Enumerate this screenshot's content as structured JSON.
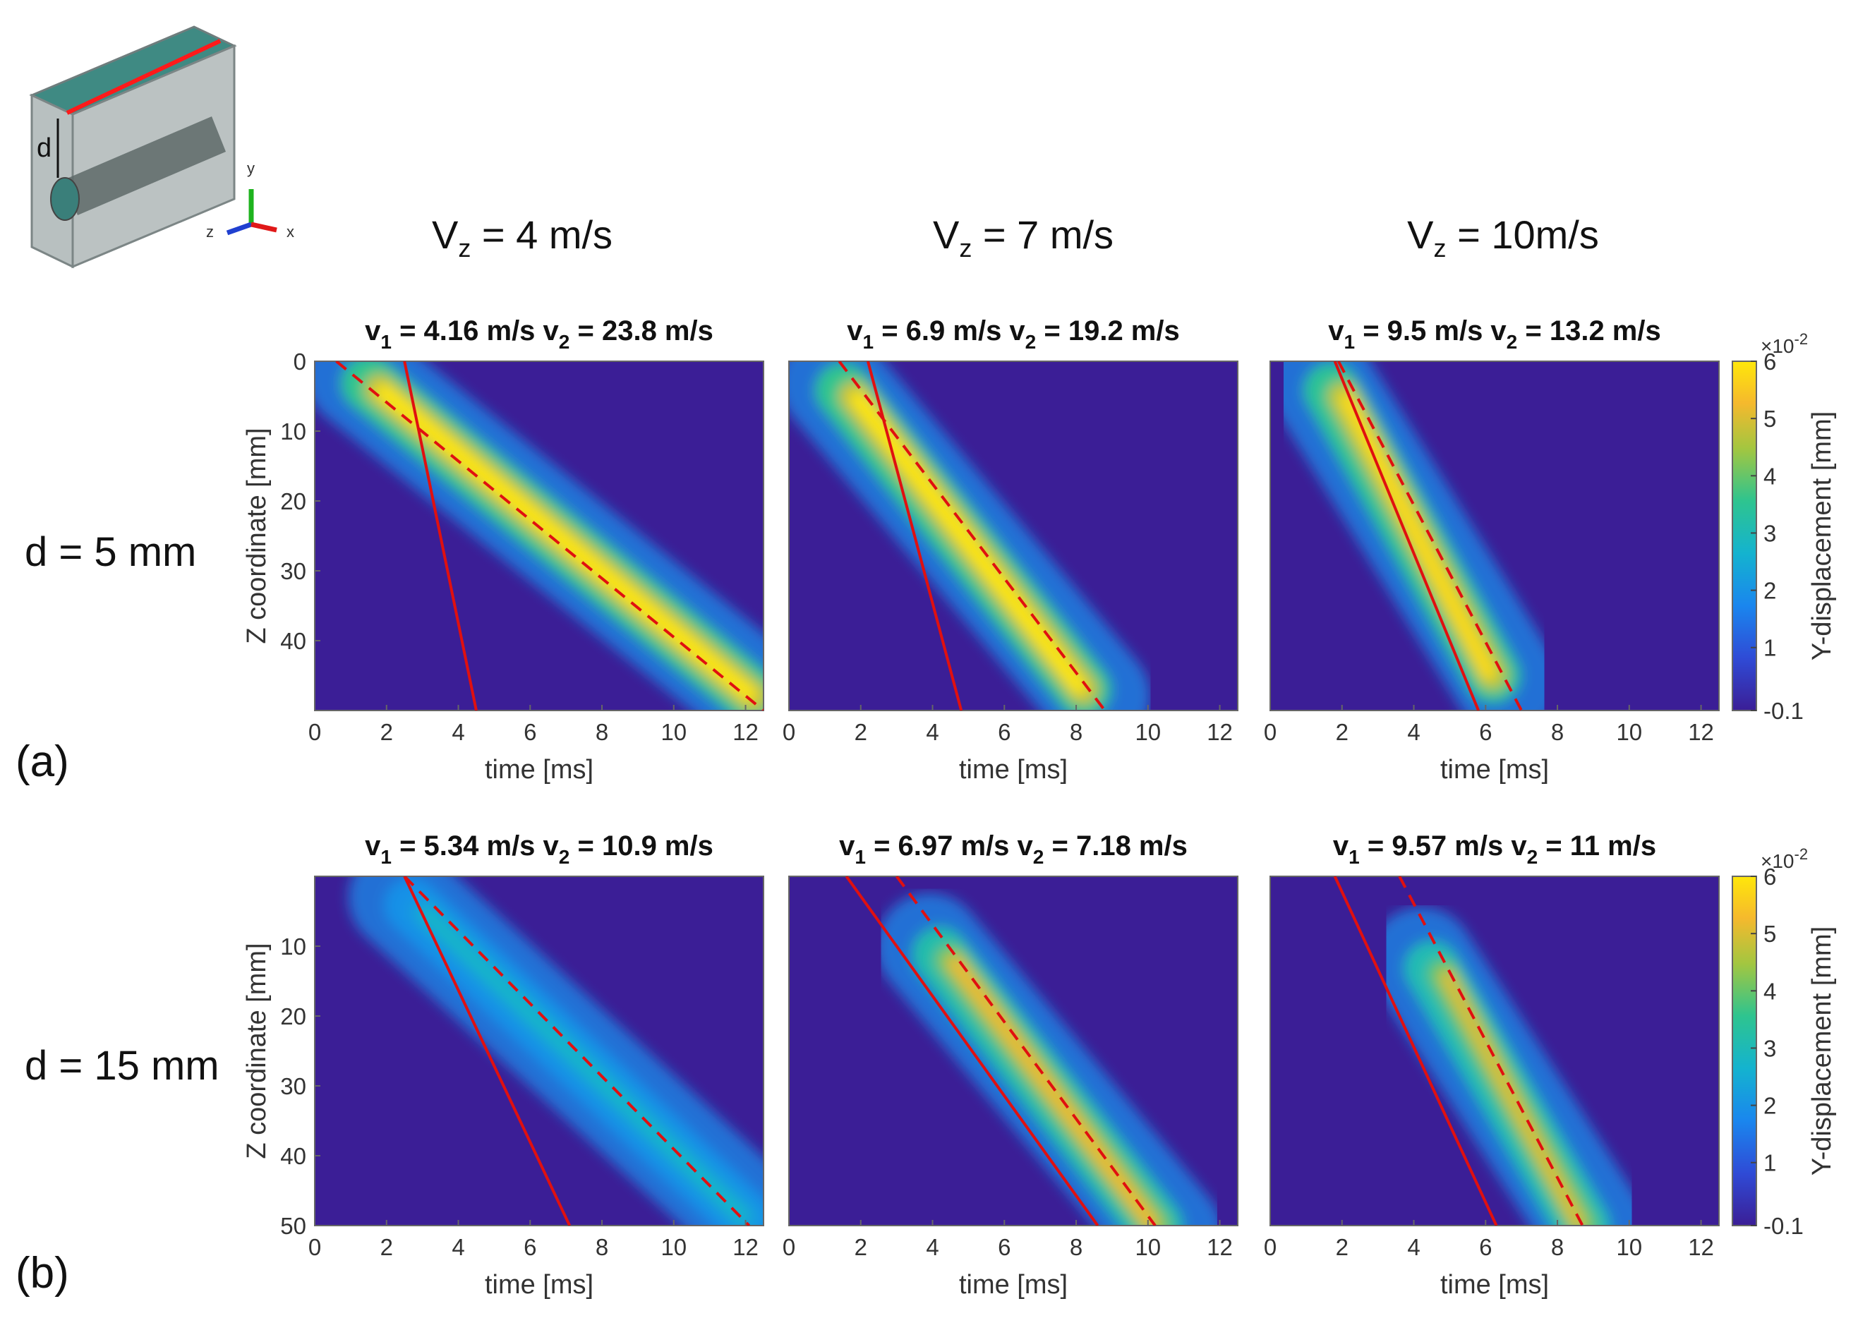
{
  "colors": {
    "background": "#3b1e96",
    "ridge_peak": "#ffe70a",
    "fit_line": "#e01010",
    "axis": "#333333"
  },
  "inset": {
    "d_label": "d",
    "axis_labels": [
      "y",
      "z",
      "x"
    ]
  },
  "columns": [
    {
      "label": "V",
      "sub": "z",
      "rest": " = 4 m/s"
    },
    {
      "label": "V",
      "sub": "z",
      "rest": " = 7 m/s"
    },
    {
      "label": "V",
      "sub": "z",
      "rest": " = 10m/s"
    }
  ],
  "rows": [
    {
      "label": "d = 5 mm",
      "panel": "(a)"
    },
    {
      "label": "d = 15 mm",
      "panel": "(b)"
    }
  ],
  "axes": {
    "xlabel": "time [ms]",
    "ylabel": "Z coordinate [mm]",
    "xlim": [
      0,
      12.5
    ],
    "xticks": [
      "0",
      "2",
      "4",
      "6",
      "8",
      "10",
      "12"
    ],
    "row_a_ylim": [
      0,
      50
    ],
    "row_a_yticks": [
      "0",
      "10",
      "20",
      "30",
      "40"
    ],
    "row_b_ylim": [
      0,
      50
    ],
    "row_b_yticks": [
      "10",
      "20",
      "30",
      "40",
      "50"
    ]
  },
  "colorbar": {
    "label": "Y-displacement [mm]",
    "scale": "×10",
    "scale_exp": "-2",
    "ticks": [
      "6",
      "5",
      "4",
      "3",
      "2",
      "1",
      "-0.1"
    ]
  },
  "chart_data": [
    {
      "type": "heatmap",
      "title": "v1 = 4.16 m/s  v2 = 23.8 m/s",
      "title_parts": {
        "v": "v",
        "s1": "1",
        "t1": " = 4.16 m/s  ",
        "s2": "2",
        "t2": " = 23.8 m/s"
      },
      "xlabel": "time [ms]",
      "ylabel": "Z coordinate [mm]",
      "xlim": [
        0,
        12.5
      ],
      "ylim": [
        0,
        50
      ],
      "solid_line": {
        "t0": 2.5,
        "t1": 4.5,
        "z0": 0,
        "z1": 50
      },
      "dashed_line": {
        "t0": 0.6,
        "t1": 12.5,
        "z0": 0,
        "z1": 50
      },
      "ridge": {
        "t0": 1.8,
        "t1": 12.2,
        "z0": 4,
        "z1": 48,
        "peak": 6.0
      }
    },
    {
      "type": "heatmap",
      "title": "v1 = 6.9 m/s  v2 = 19.2 m/s",
      "title_parts": {
        "v": "v",
        "s1": "1",
        "t1": " = 6.9 m/s  ",
        "s2": "2",
        "t2": " = 19.2 m/s"
      },
      "xlabel": "time [ms]",
      "ylabel": "Z coordinate [mm]",
      "xlim": [
        0,
        12.5
      ],
      "ylim": [
        0,
        50
      ],
      "solid_line": {
        "t0": 2.2,
        "t1": 4.8,
        "z0": 0,
        "z1": 50
      },
      "dashed_line": {
        "t0": 1.4,
        "t1": 8.8,
        "z0": 0,
        "z1": 50
      },
      "ridge": {
        "t0": 1.8,
        "t1": 8.2,
        "z0": 5,
        "z1": 47,
        "peak": 6.0
      }
    },
    {
      "type": "heatmap",
      "title": "v1 = 9.5 m/s  v2 = 13.2 m/s",
      "title_parts": {
        "v": "v",
        "s1": "1",
        "t1": " = 9.5 m/s  ",
        "s2": "2",
        "t2": " = 13.2 m/s"
      },
      "xlabel": "time [ms]",
      "ylabel": "Z coordinate [mm]",
      "xlim": [
        0,
        12.5
      ],
      "ylim": [
        0,
        50
      ],
      "solid_line": {
        "t0": 1.8,
        "t1": 5.8,
        "z0": 0,
        "z1": 50
      },
      "dashed_line": {
        "t0": 1.9,
        "t1": 7.0,
        "z0": 0,
        "z1": 50
      },
      "ridge": {
        "t0": 2.0,
        "t1": 6.2,
        "z0": 5,
        "z1": 45,
        "peak": 5.8
      }
    },
    {
      "type": "heatmap",
      "title": "v1 = 5.34 m/s  v2 = 10.9 m/s",
      "title_parts": {
        "v": "v",
        "s1": "1",
        "t1": " = 5.34 m/s  ",
        "s2": "2",
        "t2": " = 10.9 m/s"
      },
      "xlabel": "time [ms]",
      "ylabel": "Z coordinate [mm]",
      "xlim": [
        0,
        12.5
      ],
      "ylim": [
        0,
        50
      ],
      "solid_line": {
        "t0": 2.5,
        "t1": 7.1,
        "z0": 0,
        "z1": 50
      },
      "dashed_line": {
        "t0": 2.5,
        "t1": 12.1,
        "z0": 0,
        "z1": 50
      },
      "ridge": {
        "t0": 3.0,
        "t1": 12.0,
        "z0": 5,
        "z1": 49,
        "peak": 2.8
      }
    },
    {
      "type": "heatmap",
      "title": "v1 = 6.97 m/s  v2 = 7.18 m/s",
      "title_parts": {
        "v": "v",
        "s1": "1",
        "t1": " = 6.97 m/s  ",
        "s2": "2",
        "t2": " = 7.18 m/s"
      },
      "xlabel": "time [ms]",
      "ylabel": "Z coordinate [mm]",
      "xlim": [
        0,
        12.5
      ],
      "ylim": [
        0,
        50
      ],
      "solid_line": {
        "t0": 1.6,
        "t1": 8.6,
        "z0": 0,
        "z1": 50
      },
      "dashed_line": {
        "t0": 3.0,
        "t1": 10.2,
        "z0": 0,
        "z1": 50
      },
      "ridge": {
        "t0": 4.5,
        "t1": 10.2,
        "z0": 12,
        "z1": 50,
        "peak": 5.2
      }
    },
    {
      "type": "heatmap",
      "title": "v1 = 9.57 m/s  v2 = 11 m/s",
      "title_parts": {
        "v": "v",
        "s1": "1",
        "t1": " = 9.57 m/s  ",
        "s2": "2",
        "t2": " = 11 m/s"
      },
      "xlabel": "time [ms]",
      "ylabel": "Z coordinate [mm]",
      "xlim": [
        0,
        12.5
      ],
      "ylim": [
        0,
        50
      ],
      "solid_line": {
        "t0": 1.8,
        "t1": 6.3,
        "z0": 0,
        "z1": 50
      },
      "dashed_line": {
        "t0": 3.6,
        "t1": 8.7,
        "z0": 0,
        "z1": 50
      },
      "ridge": {
        "t0": 4.8,
        "t1": 8.7,
        "z0": 14,
        "z1": 50,
        "peak": 5.0
      }
    }
  ]
}
